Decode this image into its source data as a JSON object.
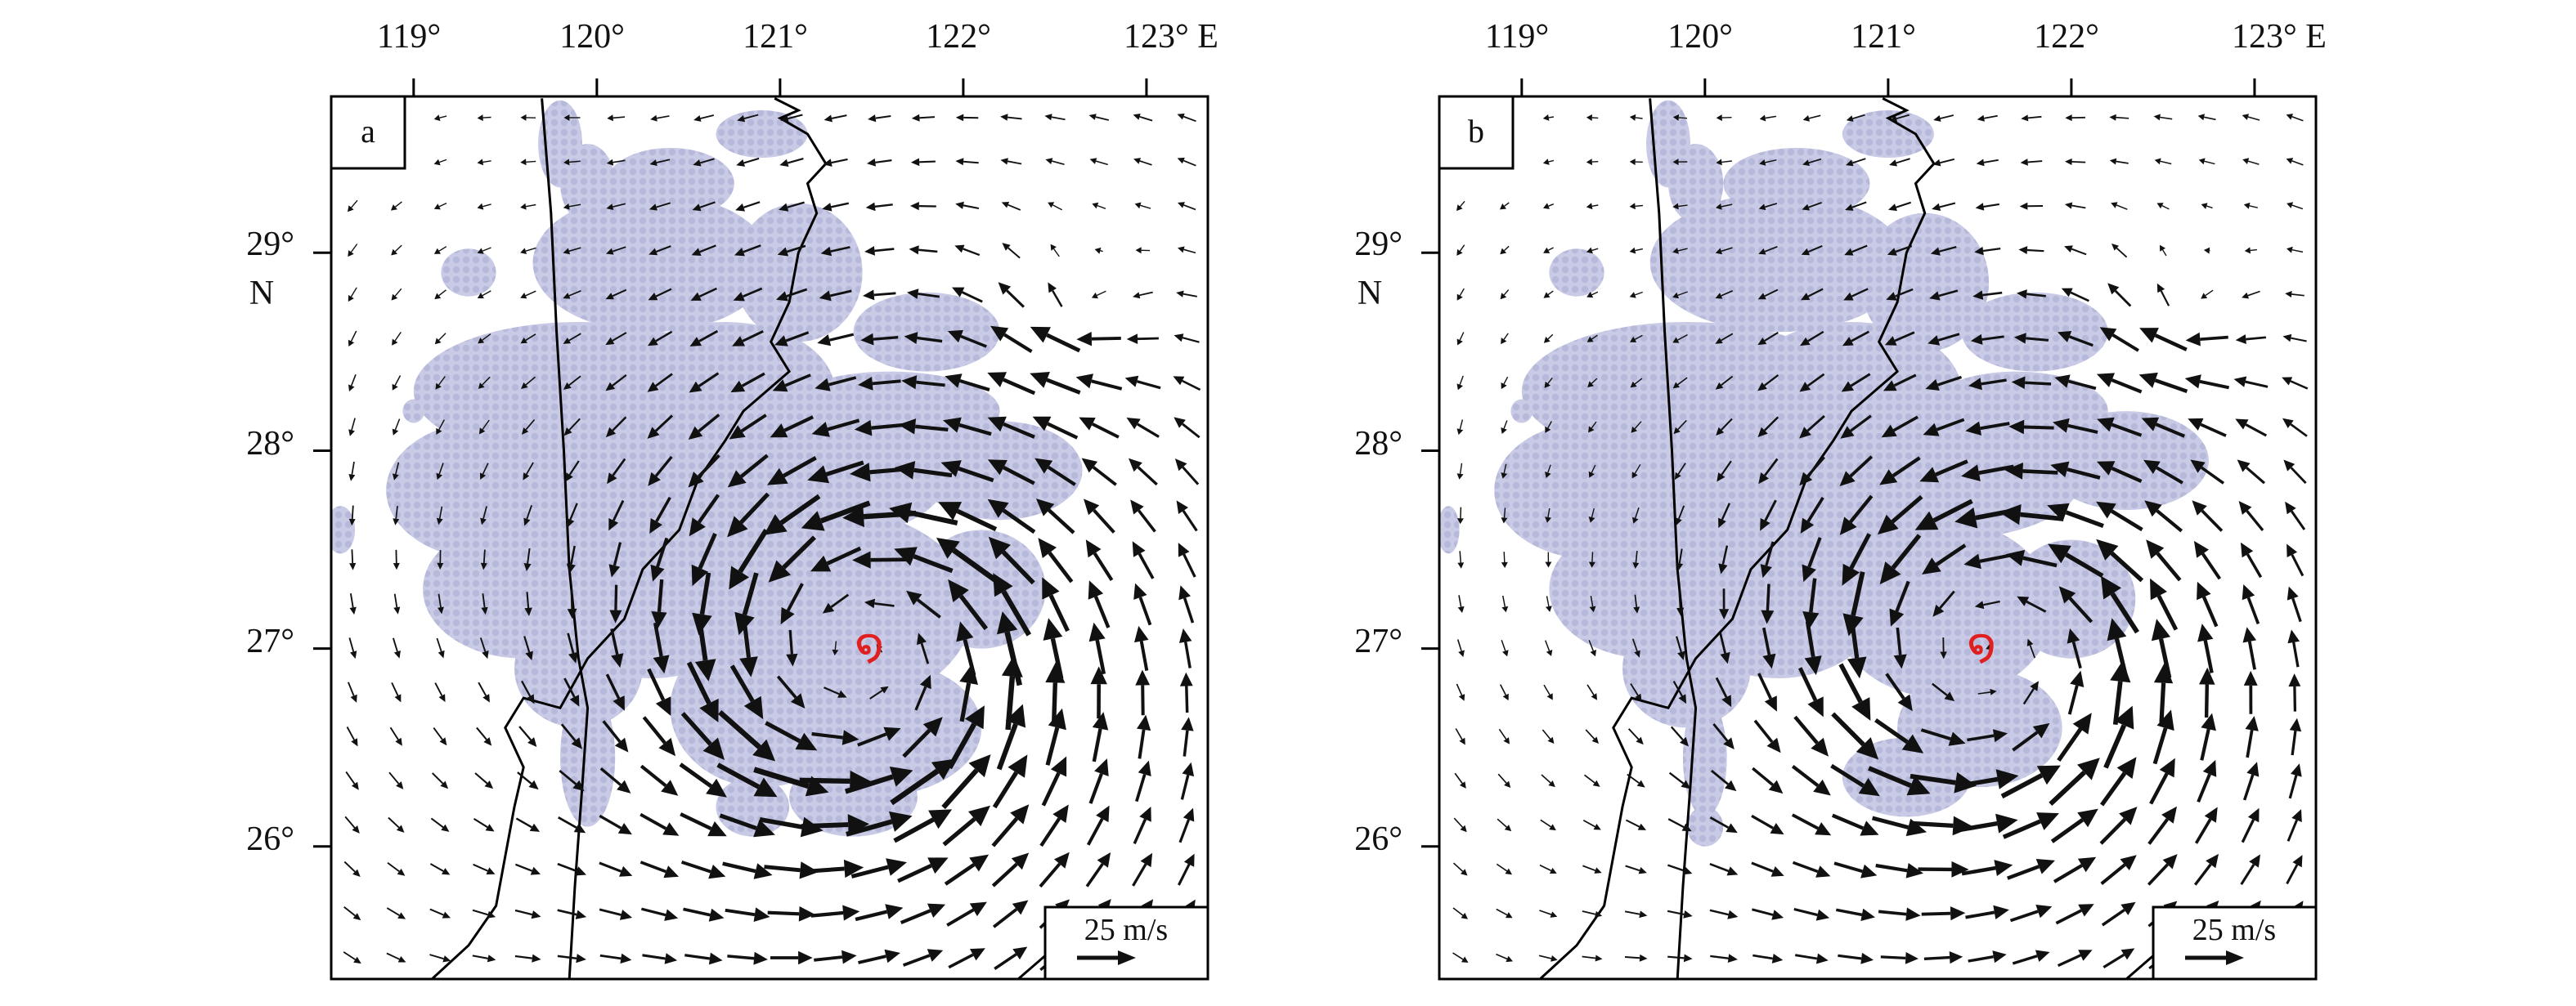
{
  "figure": {
    "colors": {
      "frame": "#000000",
      "arrow": "#111111",
      "precip_shading": "#c9cbe6",
      "precip_dot": "#b7b9db",
      "coastline": "#000000",
      "typhoon_symbol": "#e02020"
    },
    "panels": [
      {
        "label": "a",
        "lon_labels": [
          "119°",
          "120°",
          "121°",
          "122°",
          "123° E"
        ],
        "lat_labels": [
          "29°",
          "28°",
          "27°",
          "26°"
        ],
        "lat_unit": "N",
        "scale_label": "25 m/s",
        "typhoon_icon": "typhoon-symbol",
        "center": {
          "lon": 121.45,
          "lat": 26.95
        },
        "vortex_strength": 1.0
      },
      {
        "label": "b",
        "lon_labels": [
          "119°",
          "120°",
          "121°",
          "122°",
          "123° E"
        ],
        "lat_labels": [
          "29°",
          "28°",
          "27°",
          "26°"
        ],
        "lat_unit": "N",
        "scale_label": "25 m/s",
        "typhoon_icon": "typhoon-symbol",
        "center": {
          "lon": 121.55,
          "lat": 26.95
        },
        "vortex_strength": 0.9
      }
    ]
  }
}
